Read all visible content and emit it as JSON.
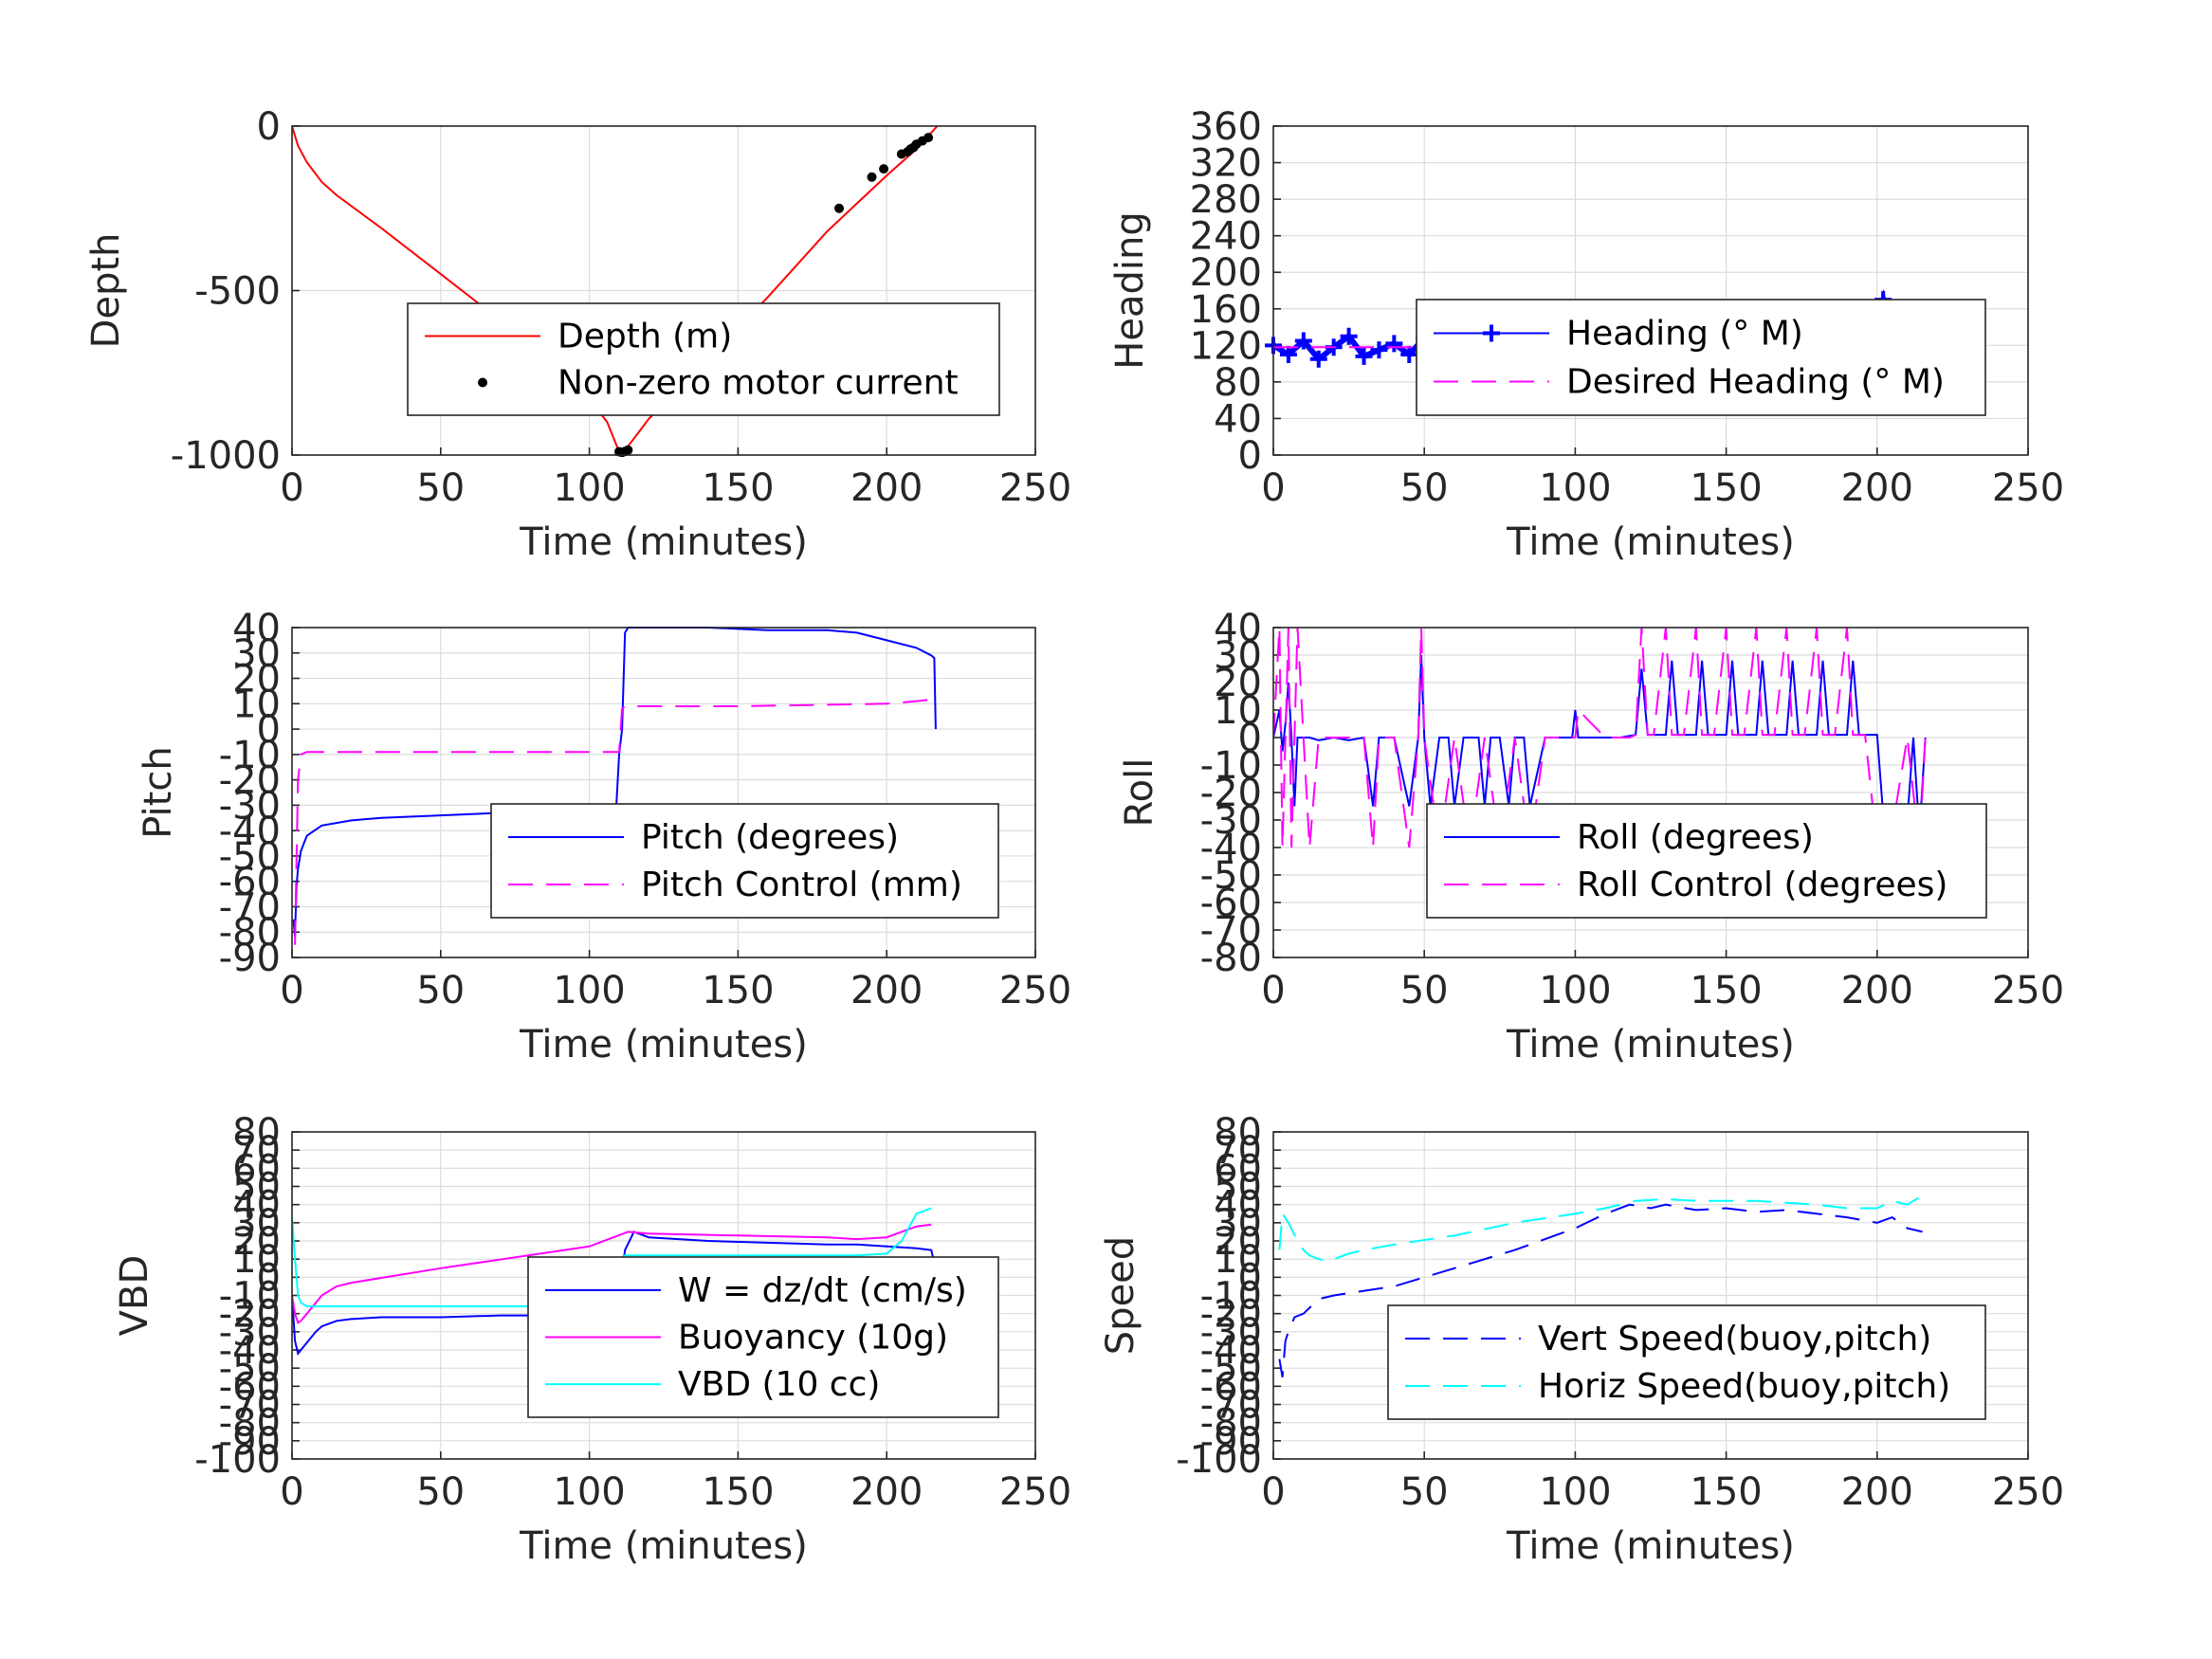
{
  "chart_data": [
    {
      "id": "depth",
      "type": "line",
      "xlabel": "Time (minutes)",
      "ylabel": "Depth",
      "xlim": [
        0,
        250
      ],
      "ylim": [
        -1000,
        0
      ],
      "xticks": [
        "0",
        "50",
        "100",
        "150",
        "200",
        "250"
      ],
      "yticks": [
        "-1000",
        "-500",
        "0"
      ],
      "grid": true,
      "legend_position": "center-right",
      "series": [
        {
          "name": "Depth (m)",
          "color": "#ff0000",
          "style": "solid",
          "x": [
            0,
            2,
            5,
            10,
            15,
            30,
            50,
            70,
            90,
            100,
            106,
            110,
            112,
            115,
            120,
            140,
            160,
            180,
            200,
            210,
            217
          ],
          "y": [
            0,
            -60,
            -110,
            -170,
            -210,
            -310,
            -450,
            -590,
            -740,
            -830,
            -900,
            -990,
            -985,
            -950,
            -890,
            -710,
            -520,
            -320,
            -150,
            -70,
            0
          ]
        },
        {
          "name": "Non-zero motor current",
          "color": "#000000",
          "style": "markers",
          "x": [
            110,
            111,
            112,
            113,
            184,
            195,
            199,
            205,
            207,
            208,
            209,
            210,
            212,
            214
          ],
          "y": [
            -990,
            -992,
            -989,
            -985,
            -250,
            -155,
            -130,
            -85,
            -78,
            -70,
            -65,
            -55,
            -45,
            -35
          ]
        }
      ]
    },
    {
      "id": "heading",
      "type": "line",
      "xlabel": "Time (minutes)",
      "ylabel": "Heading",
      "xlim": [
        0,
        250
      ],
      "ylim": [
        0,
        360
      ],
      "xticks": [
        "0",
        "50",
        "100",
        "150",
        "200",
        "250"
      ],
      "yticks": [
        "0",
        "40",
        "80",
        "120",
        "160",
        "200",
        "240",
        "280",
        "320",
        "360"
      ],
      "grid": true,
      "legend_position": "center-right",
      "series": [
        {
          "name": "Heading (° M)",
          "color": "#0000ff",
          "style": "plus-markers",
          "x": [
            0,
            5,
            10,
            15,
            20,
            25,
            30,
            35,
            40,
            45,
            50,
            55,
            60,
            65,
            70,
            75,
            80,
            85,
            90,
            95,
            100,
            105,
            110,
            115,
            120,
            125,
            130,
            135,
            140,
            145,
            150,
            155,
            160,
            165,
            170,
            175,
            180,
            185,
            190,
            195,
            200,
            202,
            205,
            210,
            215,
            218
          ],
          "y": [
            120,
            110,
            125,
            105,
            118,
            130,
            108,
            115,
            122,
            110,
            128,
            112,
            118,
            105,
            120,
            125,
            110,
            118,
            115,
            130,
            135,
            118,
            122,
            110,
            125,
            115,
            128,
            112,
            120,
            118,
            125,
            110,
            122,
            115,
            118,
            112,
            125,
            110,
            128,
            120,
            150,
            170,
            125,
            135,
            115,
            110
          ]
        },
        {
          "name": "Desired Heading (° M)",
          "color": "#ff00ff",
          "style": "dashed",
          "x": [
            0,
            218
          ],
          "y": [
            118,
            118
          ]
        }
      ]
    },
    {
      "id": "pitch",
      "type": "line",
      "xlabel": "Time (minutes)",
      "ylabel": "Pitch",
      "xlim": [
        0,
        250
      ],
      "ylim": [
        -90,
        40
      ],
      "xticks": [
        "0",
        "50",
        "100",
        "150",
        "200",
        "250"
      ],
      "yticks": [
        "-90",
        "-80",
        "-70",
        "-60",
        "-50",
        "-40",
        "-30",
        "-20",
        "-10",
        "0",
        "10",
        "20",
        "30",
        "40"
      ],
      "grid": true,
      "legend_position": "center-right",
      "series": [
        {
          "name": "Pitch (degrees)",
          "color": "#0000ff",
          "style": "solid",
          "x": [
            0.5,
            1,
            1.5,
            2,
            3,
            5,
            10,
            20,
            30,
            50,
            70,
            90,
            100,
            109,
            110,
            111,
            112,
            113,
            120,
            140,
            160,
            180,
            190,
            200,
            210,
            215,
            216,
            216.5
          ],
          "y": [
            -75,
            -82,
            -62,
            -55,
            -48,
            -42,
            -38,
            -36,
            -35,
            -34,
            -33,
            -33,
            -33,
            -32,
            -10,
            0,
            38,
            40,
            40,
            40,
            39,
            39,
            38,
            35,
            32,
            29,
            28,
            0
          ]
        },
        {
          "name": "Pitch Control (mm)",
          "color": "#ff00ff",
          "style": "dashed",
          "x": [
            1,
            2,
            3,
            5,
            10,
            50,
            100,
            108,
            110,
            111,
            112,
            150,
            200,
            210,
            218
          ],
          "y": [
            -85,
            -20,
            -10,
            -9,
            -9,
            -9,
            -9,
            -9,
            -9,
            8,
            9,
            9,
            10,
            11,
            12
          ]
        }
      ]
    },
    {
      "id": "roll",
      "type": "line",
      "xlabel": "Time (minutes)",
      "ylabel": "Roll",
      "xlim": [
        0,
        250
      ],
      "ylim": [
        -80,
        40
      ],
      "xticks": [
        "0",
        "50",
        "100",
        "150",
        "200",
        "250"
      ],
      "yticks": [
        "-80",
        "-70",
        "-60",
        "-50",
        "-40",
        "-30",
        "-20",
        "-10",
        "0",
        "10",
        "20",
        "30",
        "40"
      ],
      "grid": true,
      "legend_position": "center-right",
      "series": [
        {
          "name": "Roll (degrees)",
          "color": "#0000ff",
          "style": "solid",
          "x": [
            0,
            2,
            3,
            4,
            5,
            6,
            7,
            8,
            10,
            12,
            15,
            20,
            25,
            30,
            33,
            35,
            40,
            45,
            48,
            49,
            50,
            52,
            55,
            58,
            60,
            63,
            65,
            68,
            70,
            72,
            75,
            78,
            80,
            83,
            85,
            90,
            95,
            99,
            100,
            101,
            105,
            110,
            115,
            120,
            122,
            124,
            126,
            130,
            132,
            134,
            136,
            140,
            142,
            144,
            146,
            150,
            152,
            154,
            156,
            160,
            162,
            164,
            166,
            170,
            172,
            174,
            176,
            180,
            182,
            184,
            186,
            190,
            192,
            194,
            196,
            200,
            202,
            204,
            206,
            210,
            212,
            214,
            216
          ],
          "y": [
            0,
            10,
            -5,
            5,
            20,
            0,
            -25,
            0,
            0,
            0,
            -1,
            0,
            -1,
            0,
            -25,
            0,
            0,
            -25,
            0,
            30,
            0,
            -25,
            0,
            0,
            -25,
            0,
            0,
            0,
            -25,
            0,
            0,
            -25,
            0,
            0,
            -25,
            0,
            0,
            0,
            10,
            0,
            0,
            0,
            0,
            1,
            25,
            1,
            1,
            1,
            28,
            1,
            1,
            1,
            28,
            1,
            1,
            1,
            28,
            1,
            1,
            1,
            28,
            1,
            1,
            1,
            28,
            1,
            1,
            1,
            28,
            1,
            1,
            1,
            28,
            1,
            1,
            1,
            -28,
            -30,
            -28,
            -30,
            0,
            -35,
            0
          ]
        },
        {
          "name": "Roll Control (degrees)",
          "color": "#ff00ff",
          "style": "dashed",
          "x": [
            0,
            2,
            3,
            5,
            6,
            8,
            10,
            12,
            15,
            20,
            30,
            33,
            35,
            40,
            45,
            48,
            49,
            50,
            55,
            60,
            65,
            70,
            75,
            80,
            85,
            90,
            100,
            101,
            110,
            118,
            120,
            122,
            124,
            126,
            130,
            132,
            134,
            136,
            140,
            142,
            144,
            146,
            150,
            152,
            154,
            156,
            160,
            162,
            164,
            166,
            170,
            172,
            174,
            176,
            180,
            182,
            184,
            186,
            190,
            192,
            194,
            196,
            200,
            202,
            204,
            210,
            214,
            216
          ],
          "y": [
            0,
            40,
            -40,
            40,
            -40,
            40,
            0,
            -40,
            0,
            0,
            0,
            -40,
            0,
            0,
            -40,
            0,
            40,
            0,
            -40,
            0,
            -40,
            0,
            -40,
            0,
            -40,
            0,
            0,
            10,
            0,
            0,
            1,
            40,
            1,
            1,
            40,
            1,
            1,
            1,
            40,
            1,
            1,
            1,
            40,
            1,
            1,
            1,
            40,
            1,
            1,
            1,
            40,
            1,
            1,
            1,
            40,
            1,
            1,
            1,
            40,
            1,
            1,
            1,
            -40,
            -30,
            -40,
            0,
            -40,
            0
          ]
        }
      ]
    },
    {
      "id": "vbd",
      "type": "line",
      "xlabel": "Time (minutes)",
      "ylabel": "VBD",
      "xlim": [
        0,
        250
      ],
      "ylim": [
        -100,
        80
      ],
      "xticks": [
        "0",
        "50",
        "100",
        "150",
        "200",
        "250"
      ],
      "yticks": [
        "-100",
        "-90",
        "-80",
        "-70",
        "-60",
        "-50",
        "-40",
        "-30",
        "-20",
        "-10",
        "0",
        "10",
        "20",
        "30",
        "40",
        "50",
        "60",
        "70",
        "80"
      ],
      "grid": true,
      "legend_position": "center-right",
      "series": [
        {
          "name": "W = dz/dt (cm/s)",
          "color": "#0000ff",
          "style": "solid",
          "x": [
            0,
            1,
            2,
            3,
            5,
            8,
            10,
            15,
            20,
            30,
            50,
            70,
            90,
            100,
            108,
            110,
            112,
            115,
            120,
            140,
            160,
            180,
            190,
            200,
            210,
            215,
            216
          ],
          "y": [
            -10,
            -35,
            -42,
            -40,
            -36,
            -30,
            -27,
            -24,
            -23,
            -22,
            -22,
            -21,
            -21,
            -20,
            -20,
            -10,
            15,
            25,
            22,
            20,
            19,
            18,
            18,
            17,
            16,
            15,
            8
          ]
        },
        {
          "name": "Buoyancy (10g)",
          "color": "#ff00ff",
          "style": "solid",
          "x": [
            0,
            1,
            2,
            3,
            5,
            8,
            10,
            15,
            20,
            50,
            100,
            113,
            120,
            150,
            180,
            190,
            200,
            205,
            210,
            215
          ],
          "y": [
            -10,
            -20,
            -25,
            -24,
            -20,
            -14,
            -10,
            -5,
            -3,
            5,
            17,
            25,
            24,
            23,
            22,
            21,
            22,
            25,
            28,
            29
          ]
        },
        {
          "name": "VBD (10 cc)",
          "color": "#00ffff",
          "style": "solid",
          "x": [
            0,
            1,
            2,
            3,
            5,
            10,
            50,
            100,
            108,
            110,
            112,
            150,
            190,
            200,
            205,
            210,
            215
          ],
          "y": [
            33,
            10,
            -10,
            -14,
            -16,
            -16,
            -16,
            -16,
            -16,
            -10,
            12,
            12,
            12,
            13,
            20,
            35,
            38
          ]
        }
      ]
    },
    {
      "id": "speed",
      "type": "line",
      "xlabel": "Time (minutes)",
      "ylabel": "Speed",
      "xlim": [
        0,
        250
      ],
      "ylim": [
        -100,
        80
      ],
      "xticks": [
        "0",
        "50",
        "100",
        "150",
        "200",
        "250"
      ],
      "yticks": [
        "-100",
        "-90",
        "-80",
        "-70",
        "-60",
        "-50",
        "-40",
        "-30",
        "-20",
        "-10",
        "0",
        "10",
        "20",
        "30",
        "40",
        "50",
        "60",
        "70",
        "80"
      ],
      "grid": true,
      "legend_position": "bottom-right",
      "series": [
        {
          "name": "Vert Speed(buoy,pitch)",
          "color": "#0000ff",
          "style": "dashed",
          "x": [
            2,
            3,
            4,
            5,
            7,
            10,
            15,
            20,
            40,
            60,
            80,
            100,
            110,
            118,
            125,
            130,
            140,
            150,
            160,
            170,
            180,
            190,
            200,
            205,
            210,
            215
          ],
          "y": [
            -45,
            -55,
            -35,
            -30,
            -22,
            -20,
            -12,
            -10,
            -5,
            5,
            15,
            27,
            35,
            40,
            38,
            40,
            37,
            38,
            36,
            37,
            35,
            33,
            30,
            33,
            27,
            25
          ]
        },
        {
          "name": "Horiz Speed(buoy,pitch)",
          "color": "#00ffff",
          "style": "dashed",
          "x": [
            2,
            3,
            5,
            8,
            10,
            12,
            15,
            18,
            20,
            25,
            30,
            40,
            60,
            80,
            100,
            110,
            120,
            130,
            140,
            160,
            180,
            190,
            200,
            205,
            210,
            215
          ],
          "y": [
            15,
            35,
            30,
            20,
            15,
            12,
            10,
            9,
            10,
            13,
            15,
            18,
            23,
            30,
            35,
            38,
            42,
            43,
            42,
            42,
            40,
            38,
            38,
            42,
            40,
            45
          ]
        }
      ]
    }
  ]
}
